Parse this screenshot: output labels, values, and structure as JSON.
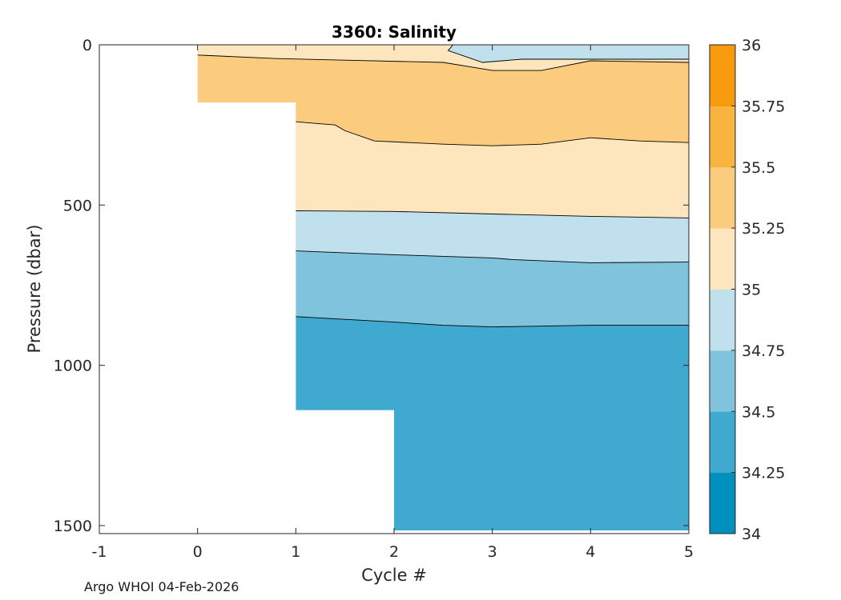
{
  "chart_data": {
    "type": "filled-contour",
    "title": "3360:  Salinity",
    "xlabel": "Cycle #",
    "ylabel": "Pressure (dbar)",
    "xlim": [
      -1,
      5
    ],
    "ylim": [
      0,
      1525
    ],
    "y_reversed": true,
    "xticks": [
      -1,
      0,
      1,
      2,
      3,
      4,
      5
    ],
    "yticks": [
      0,
      500,
      1000,
      1500
    ],
    "colorbar": {
      "ticks": [
        "36",
        "35.75",
        "35.5",
        "35.25",
        "35",
        "34.75",
        "34.5",
        "34.25",
        "34"
      ],
      "levels": [
        34,
        34.25,
        34.5,
        34.75,
        35,
        35.25,
        35.5,
        35.75,
        36
      ],
      "colors": [
        "#0090bd",
        "#3fa9cf",
        "#7fc3dd",
        "#bfe0ec",
        "#fde6bd",
        "#fbcc7d",
        "#f9b33f",
        "#f79a0d"
      ]
    },
    "profile_depth_dbar": [
      {
        "cycle": 0,
        "max_pressure": 180
      },
      {
        "cycle": 1,
        "max_pressure": 1140
      },
      {
        "cycle": 2,
        "max_pressure": 1510
      },
      {
        "cycle": 3,
        "max_pressure": 1510
      },
      {
        "cycle": 4,
        "max_pressure": 1510
      },
      {
        "cycle": 5,
        "max_pressure": 1510
      }
    ],
    "bands": [
      {
        "range": "35.25-35.5",
        "color": "#fbcc7d",
        "top": [
          [
            0,
            30
          ],
          [
            0.8,
            45
          ],
          [
            2,
            55
          ],
          [
            3,
            80
          ],
          [
            4,
            55
          ],
          [
            5,
            55
          ]
        ],
        "bottom": "data_bottom_then_iso_35.25"
      },
      {
        "range": "35-35.25",
        "color": "#fde6bd",
        "description": "surface layer and thermocline band"
      },
      {
        "range": "34.75-35",
        "color": "#bfe0ec",
        "description": "surface patch and 520-680 dbar band"
      },
      {
        "range": "34.5-34.75",
        "color": "#7fc3dd",
        "description": "650-880 dbar band"
      },
      {
        "range": "34.25-34.5",
        "color": "#3fa9cf",
        "description": "deep water below 880 dbar"
      }
    ],
    "isolines": {
      "35.25_surface": [
        [
          0,
          32
        ],
        [
          0.8,
          43
        ],
        [
          1.5,
          48
        ],
        [
          2.5,
          55
        ],
        [
          3,
          80
        ],
        [
          3.5,
          80
        ],
        [
          4,
          50
        ],
        [
          5,
          55
        ]
      ],
      "35.25_deep": [
        [
          1,
          240
        ],
        [
          1.4,
          250
        ],
        [
          1.5,
          268
        ],
        [
          1.8,
          300
        ],
        [
          2.5,
          310
        ],
        [
          3,
          315
        ],
        [
          3.5,
          310
        ],
        [
          4,
          290
        ],
        [
          4.5,
          300
        ],
        [
          5,
          305
        ]
      ],
      "35.0": [
        [
          1,
          518
        ],
        [
          2,
          520
        ],
        [
          3,
          528
        ],
        [
          4,
          535
        ],
        [
          5,
          540
        ]
      ],
      "34.75": [
        [
          1,
          643
        ],
        [
          2,
          655
        ],
        [
          3,
          665
        ],
        [
          3.2,
          670
        ],
        [
          4,
          680
        ],
        [
          5,
          678
        ]
      ],
      "34.5": [
        [
          1,
          848
        ],
        [
          2,
          865
        ],
        [
          2.5,
          875
        ],
        [
          3,
          880
        ],
        [
          4,
          875
        ],
        [
          5,
          875
        ]
      ],
      "35.0_surface_patch": [
        [
          2.6,
          0
        ],
        [
          2.55,
          18
        ],
        [
          2.9,
          55
        ],
        [
          3.3,
          45
        ],
        [
          4,
          45
        ],
        [
          5,
          45
        ]
      ]
    }
  },
  "footer": {
    "text": "Argo WHOI 04-Feb-2026"
  }
}
